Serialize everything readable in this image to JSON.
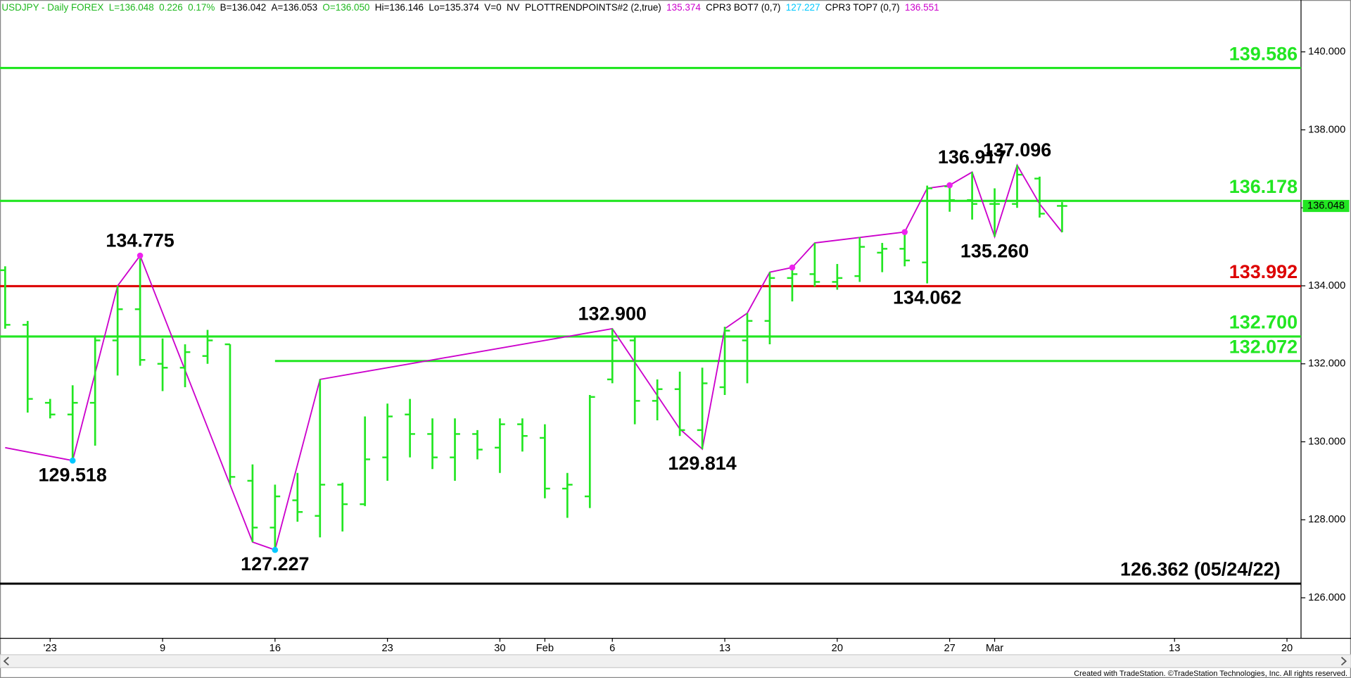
{
  "chart_data": {
    "type": "ohlc",
    "header": [
      {
        "text": "USDJPY - Daily FOREX",
        "color": "#1fb81f"
      },
      {
        "text": "L=136.048",
        "color": "#1fb81f"
      },
      {
        "text": "0.226",
        "color": "#1fb81f"
      },
      {
        "text": "0.17%",
        "color": "#1fb81f"
      },
      {
        "text": "B=136.042",
        "color": "#000000"
      },
      {
        "text": "A=136.053",
        "color": "#000000"
      },
      {
        "text": "O=136.050",
        "color": "#1fb81f"
      },
      {
        "text": "Hi=136.146",
        "color": "#000000"
      },
      {
        "text": "Lo=135.374",
        "color": "#000000"
      },
      {
        "text": "V=0",
        "color": "#000000"
      },
      {
        "text": "NV",
        "color": "#000000"
      },
      {
        "text": "PLOTTRENDPOINTS#2 (2,true)",
        "color": "#000000"
      },
      {
        "text": "135.374",
        "color": "#cc00cc"
      },
      {
        "text": "CPR3 BOT7 (0,7)",
        "color": "#000000"
      },
      {
        "text": "127.227",
        "color": "#00c8ff"
      },
      {
        "text": "CPR3 TOP7 (0,7)",
        "color": "#000000"
      },
      {
        "text": "136.551",
        "color": "#cc00cc"
      }
    ],
    "categories": [
      null,
      null,
      "'23",
      null,
      null,
      null,
      null,
      "9",
      null,
      null,
      null,
      null,
      "16",
      null,
      null,
      null,
      null,
      "23",
      null,
      null,
      null,
      null,
      "30",
      null,
      "Feb",
      null,
      null,
      "6",
      null,
      null,
      null,
      null,
      "13",
      null,
      null,
      null,
      null,
      "20",
      null,
      null,
      null,
      null,
      "27",
      null,
      "Mar",
      null,
      null,
      null,
      null,
      null,
      null,
      null,
      "13",
      null,
      null,
      null,
      null,
      "20"
    ],
    "open": [
      134.4,
      133.0,
      131.0,
      130.7,
      131.0,
      132.6,
      133.4,
      132.0,
      131.9,
      132.2,
      132.5,
      129.0,
      127.8,
      128.5,
      128.1,
      128.9,
      128.4,
      129.6,
      130.7,
      130.2,
      129.6,
      130.2,
      129.85,
      130.45,
      130.1,
      128.8,
      128.6,
      131.6,
      132.6,
      131.05,
      131.35,
      130.3,
      131.4,
      132.6,
      133.1,
      134.2,
      134.3,
      134.1,
      134.25,
      134.85,
      134.95,
      134.6,
      136.55,
      136.2,
      136.1,
      136.1,
      136.75,
      136.05,
      null,
      null,
      null,
      null,
      null,
      null,
      null,
      null,
      null,
      null
    ],
    "high": [
      134.5,
      133.1,
      131.1,
      131.45,
      132.7,
      134.0,
      134.775,
      132.65,
      132.5,
      132.87,
      132.5,
      129.42,
      128.9,
      129.2,
      131.6,
      128.95,
      130.65,
      130.98,
      131.1,
      130.6,
      130.6,
      130.3,
      130.6,
      130.6,
      130.45,
      129.2,
      131.2,
      132.9,
      132.7,
      131.6,
      131.8,
      131.9,
      132.95,
      133.3,
      134.35,
      134.47,
      135.1,
      134.56,
      135.25,
      135.1,
      135.38,
      136.57,
      136.58,
      136.917,
      136.5,
      137.096,
      136.8,
      136.146,
      null,
      null,
      null,
      null,
      null,
      null,
      null,
      null,
      null,
      null
    ],
    "low": [
      132.9,
      130.75,
      130.6,
      129.518,
      129.9,
      131.7,
      131.95,
      131.3,
      131.4,
      132.0,
      128.9,
      127.43,
      127.227,
      127.95,
      127.55,
      127.7,
      128.35,
      129.0,
      129.6,
      129.3,
      129.0,
      129.55,
      129.2,
      129.75,
      128.55,
      128.05,
      128.3,
      131.5,
      130.45,
      130.55,
      130.15,
      129.814,
      131.2,
      131.5,
      132.5,
      133.6,
      133.98,
      133.9,
      134.1,
      134.35,
      134.5,
      134.062,
      135.9,
      135.7,
      135.26,
      136.0,
      135.75,
      135.374,
      null,
      null,
      null,
      null,
      null,
      null,
      null,
      null,
      null,
      null
    ],
    "close": [
      133.0,
      131.1,
      130.7,
      131.0,
      132.6,
      133.4,
      132.1,
      131.9,
      132.3,
      132.6,
      129.1,
      127.8,
      128.6,
      128.2,
      128.9,
      128.4,
      129.55,
      130.65,
      130.2,
      129.6,
      130.2,
      129.8,
      130.45,
      130.15,
      128.8,
      128.9,
      131.15,
      132.6,
      131.05,
      131.35,
      130.3,
      131.5,
      132.85,
      133.1,
      134.2,
      134.3,
      134.1,
      134.2,
      135.0,
      134.95,
      134.65,
      136.5,
      136.2,
      136.1,
      136.1,
      136.85,
      135.85,
      136.048,
      null,
      null,
      null,
      null,
      null,
      null,
      null,
      null,
      null,
      null
    ],
    "bar_color": "#22e622",
    "last_price_color": "#22e622",
    "ylim": [
      124.96,
      141.33
    ],
    "yticks": [
      {
        "value": 126,
        "label": "126.000"
      },
      {
        "value": 128,
        "label": "128.000"
      },
      {
        "value": 130,
        "label": "130.000"
      },
      {
        "value": 132,
        "label": "132.000"
      },
      {
        "value": 134,
        "label": "134.000"
      },
      {
        "value": 136,
        "label": "136.000"
      },
      {
        "value": 138,
        "label": "138.000"
      },
      {
        "value": 140,
        "label": "140.000"
      }
    ],
    "grid": false,
    "levels": [
      {
        "value": 139.586,
        "color": "#22e622"
      },
      {
        "value": 136.178,
        "color": "#22e622"
      },
      {
        "value": 133.992,
        "color": "#dd0000"
      },
      {
        "value": 132.7,
        "label": "132.700",
        "color": "#22e622"
      },
      {
        "value": 132.072,
        "color": "#22e622"
      },
      {
        "value": 126.362,
        "label": "126.362 (05/24/22)",
        "color": "#000000"
      }
    ],
    "trend": {
      "color": "#cc00cc",
      "x": [
        0,
        3,
        5,
        6,
        11,
        12,
        14,
        27,
        28,
        30,
        31,
        32,
        33,
        34,
        35,
        36,
        40,
        41,
        42,
        43,
        44,
        45,
        46,
        47
      ],
      "values": [
        129.85,
        129.518,
        134.0,
        134.775,
        127.43,
        127.227,
        131.6,
        132.9,
        132.04,
        130.33,
        129.814,
        132.9,
        133.3,
        134.35,
        134.47,
        135.1,
        135.38,
        136.5,
        136.58,
        136.917,
        135.26,
        137.096,
        136.1,
        135.374
      ]
    },
    "pivots": [
      {
        "x": 3,
        "value": 129.518,
        "color": "#00c8ff"
      },
      {
        "x": 12,
        "value": 127.227,
        "color": "#00c8ff"
      },
      {
        "x": 6,
        "value": 134.775,
        "color": "#ee22ee"
      },
      {
        "x": 35,
        "value": 134.47,
        "color": "#ee22ee"
      },
      {
        "x": 40,
        "value": 135.38,
        "color": "#ee22ee"
      },
      {
        "x": 42,
        "value": 136.58,
        "color": "#ee22ee"
      }
    ],
    "annotations": [
      {
        "x": 6,
        "value": 134.775
      },
      {
        "x": 3,
        "value": 129.518
      },
      {
        "x": 12,
        "value": 127.227
      },
      {
        "x": 27,
        "value": 132.9,
        "label": "132.900"
      },
      {
        "x": 31,
        "value": 129.814
      },
      {
        "x": 41,
        "value": 134.062
      },
      {
        "x": 43,
        "value": 136.917
      },
      {
        "x": 45,
        "value": 137.096
      },
      {
        "x": 44,
        "value": 135.26,
        "label": "135.260"
      }
    ],
    "footer": "Created with TradeStation. ©TradeStation Technologies, Inc. All rights reserved."
  }
}
